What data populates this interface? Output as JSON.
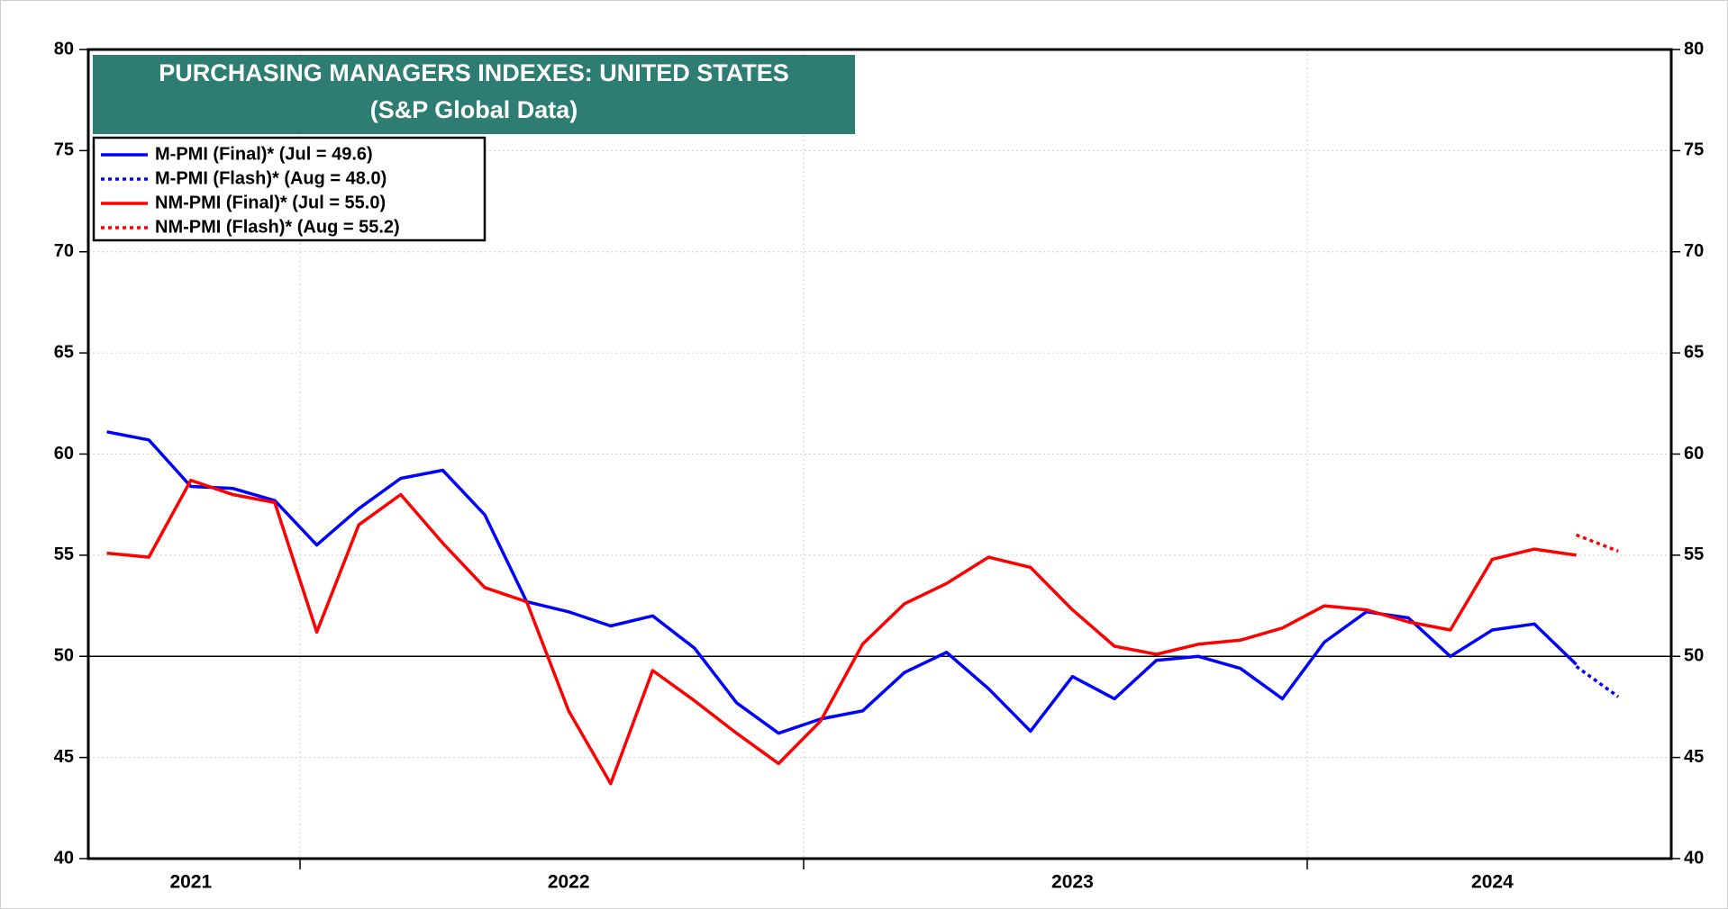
{
  "chart_data": {
    "type": "line",
    "title": "PURCHASING MANAGERS INDEXES: UNITED STATES",
    "subtitle": "(S&P Global Data)",
    "categories": [
      null,
      null,
      "2021",
      null,
      null,
      null,
      null,
      null,
      null,
      null,
      null,
      "2022",
      null,
      null,
      null,
      null,
      null,
      null,
      null,
      null,
      null,
      null,
      null,
      "2023",
      null,
      null,
      null,
      null,
      null,
      null,
      null,
      null,
      null,
      "2024",
      null,
      null,
      null
    ],
    "series": [
      {
        "name": "M-PMI (Final)* (Jul = 49.6)",
        "color": "#0000ff",
        "dash": "solid",
        "values": [
          61.1,
          60.7,
          58.4,
          58.3,
          57.7,
          55.5,
          57.3,
          58.8,
          59.2,
          57.0,
          52.7,
          52.2,
          51.5,
          52.0,
          50.4,
          47.7,
          46.2,
          46.9,
          47.3,
          49.2,
          50.2,
          48.4,
          46.3,
          49.0,
          47.9,
          49.8,
          50.0,
          49.4,
          47.9,
          50.7,
          52.2,
          51.9,
          50.0,
          51.3,
          51.6,
          49.6,
          null
        ]
      },
      {
        "name": "M-PMI (Flash)* (Aug = 48.0)",
        "color": "#0000ff",
        "dash": "dotted",
        "values": [
          null,
          null,
          null,
          null,
          null,
          null,
          null,
          null,
          null,
          null,
          null,
          null,
          null,
          null,
          null,
          null,
          null,
          null,
          null,
          null,
          null,
          null,
          null,
          null,
          null,
          null,
          null,
          null,
          null,
          null,
          null,
          null,
          null,
          null,
          null,
          49.5,
          48.0
        ]
      },
      {
        "name": "NM-PMI (Final)* (Jul = 55.0)",
        "color": "#ff0000",
        "dash": "solid",
        "values": [
          55.1,
          54.9,
          58.7,
          58.0,
          57.6,
          51.2,
          56.5,
          58.0,
          55.6,
          53.4,
          52.7,
          47.3,
          43.7,
          49.3,
          47.8,
          46.2,
          44.7,
          46.8,
          50.6,
          52.6,
          53.6,
          54.9,
          54.4,
          52.3,
          50.5,
          50.1,
          50.6,
          50.8,
          51.4,
          52.5,
          52.3,
          51.7,
          51.3,
          54.8,
          55.3,
          55.0,
          null
        ]
      },
      {
        "name": "NM-PMI (Flash)* (Aug = 55.2)",
        "color": "#ff0000",
        "dash": "dotted",
        "values": [
          null,
          null,
          null,
          null,
          null,
          null,
          null,
          null,
          null,
          null,
          null,
          null,
          null,
          null,
          null,
          null,
          null,
          null,
          null,
          null,
          null,
          null,
          null,
          null,
          null,
          null,
          null,
          null,
          null,
          null,
          null,
          null,
          null,
          null,
          null,
          56.0,
          55.2
        ]
      }
    ],
    "ylim": [
      40,
      80
    ],
    "yticks": [
      40,
      45,
      50,
      55,
      60,
      65,
      70,
      75,
      80
    ],
    "y2lim": [
      40,
      80
    ],
    "y2ticks": [
      40,
      45,
      50,
      55,
      60,
      65,
      70,
      75,
      80
    ],
    "hline": 50,
    "grid": true,
    "legend": "upper left",
    "title_color": "#2e7d72"
  }
}
